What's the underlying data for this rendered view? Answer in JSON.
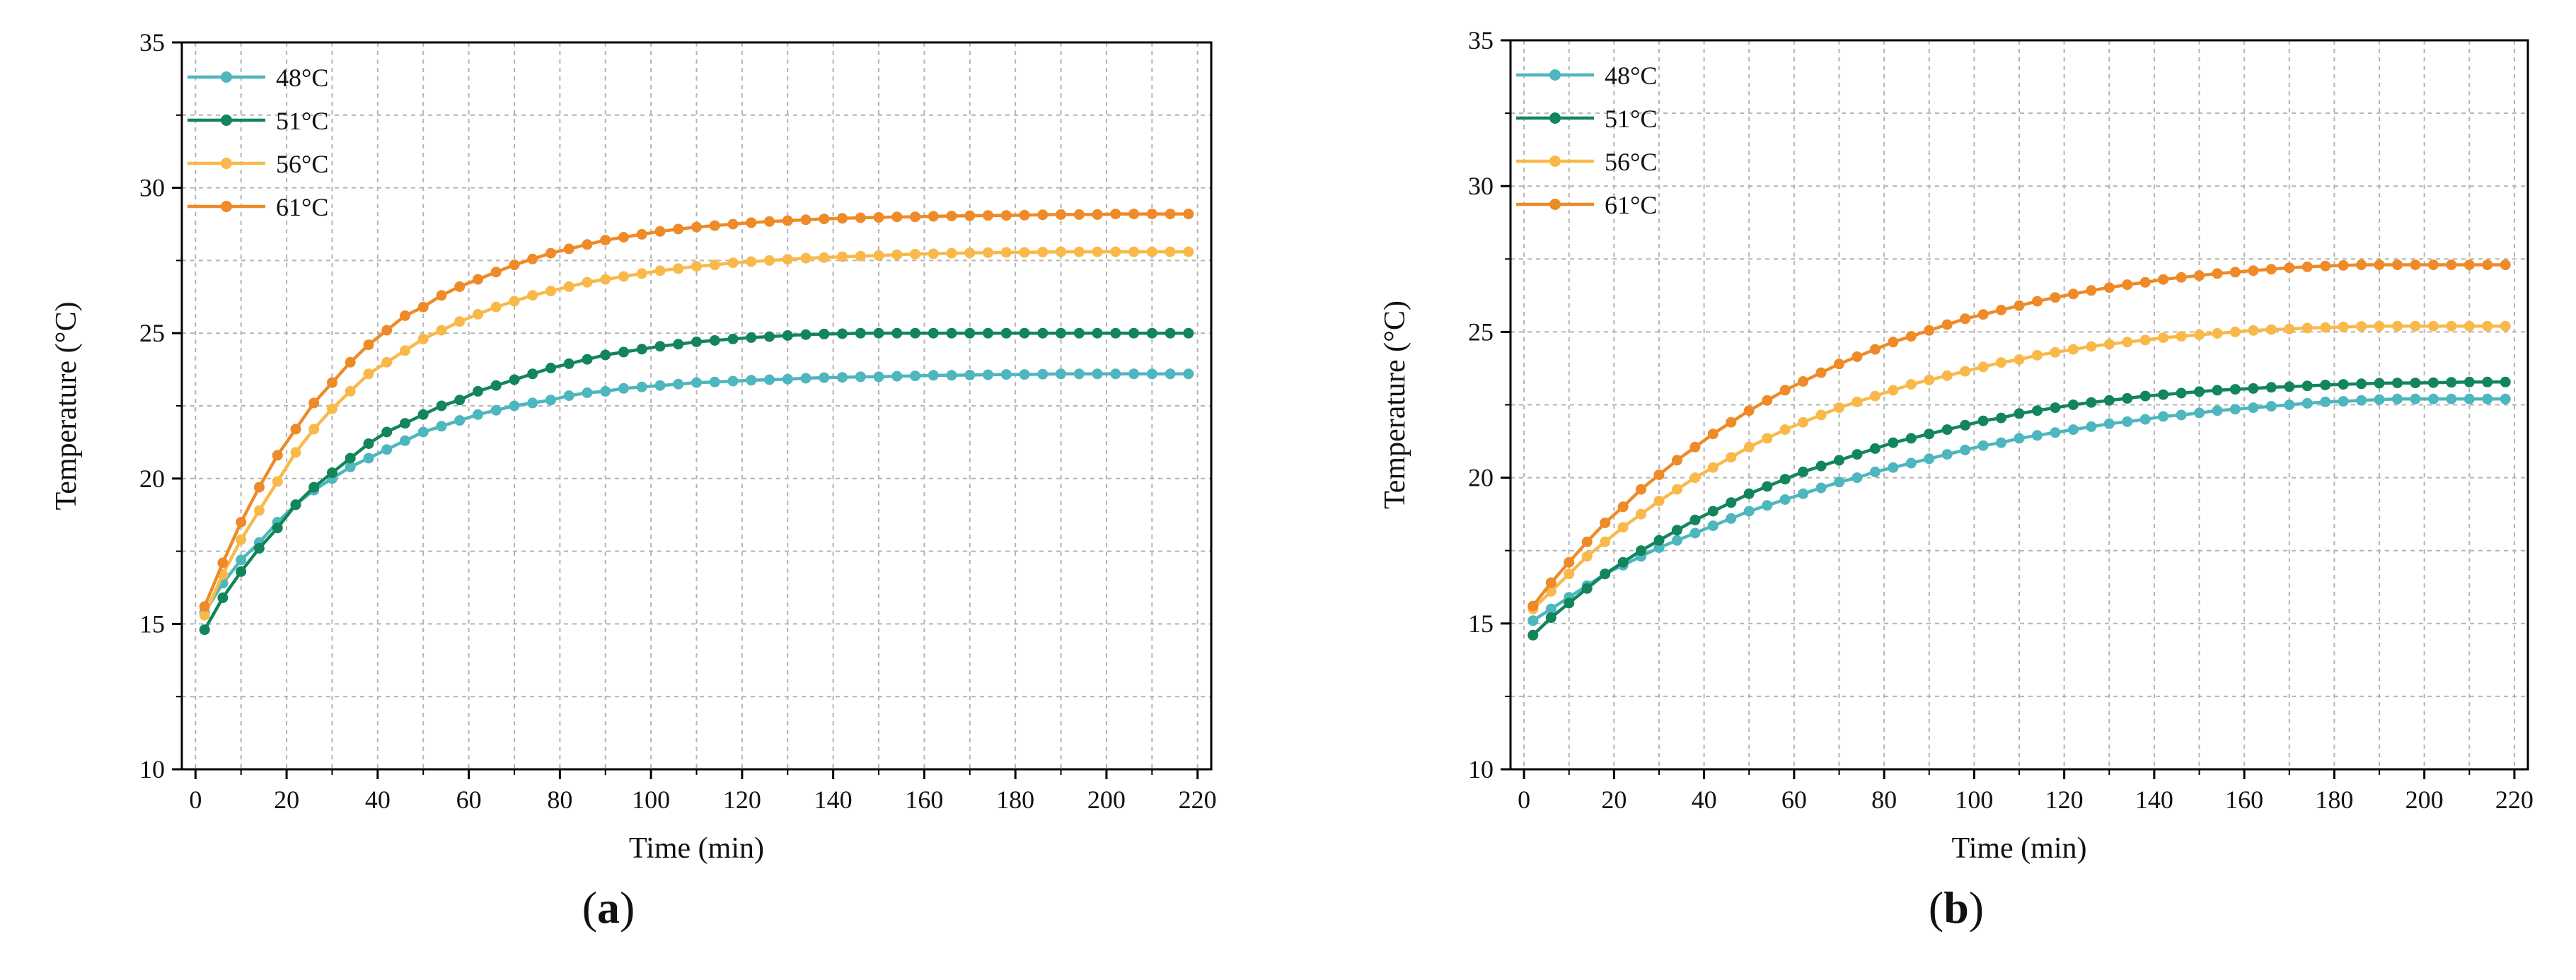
{
  "chart_data": [
    {
      "type": "line",
      "panel": "a",
      "panel_label": "a",
      "xlabel": "Time (min)",
      "ylabel": "Temperature (°C)",
      "xlim": [
        -3,
        223
      ],
      "ylim": [
        10,
        35
      ],
      "xticks": [
        0,
        20,
        40,
        60,
        80,
        100,
        120,
        140,
        160,
        180,
        200,
        220
      ],
      "yticks": [
        10,
        15,
        20,
        25,
        30,
        35
      ],
      "grid": true,
      "legend_position": "top-left",
      "x": [
        2,
        6,
        10,
        14,
        18,
        22,
        26,
        30,
        34,
        38,
        42,
        46,
        50,
        54,
        58,
        62,
        66,
        70,
        74,
        78,
        82,
        86,
        90,
        94,
        98,
        102,
        106,
        110,
        114,
        118,
        122,
        126,
        130,
        134,
        138,
        142,
        146,
        150,
        154,
        158,
        162,
        166,
        170,
        174,
        178,
        182,
        186,
        190,
        194,
        198,
        202,
        206,
        210,
        214,
        218
      ],
      "series": [
        {
          "name": "48°C",
          "color": "#4DB6BE",
          "values": [
            15.4,
            16.4,
            17.2,
            17.8,
            18.5,
            19.1,
            19.6,
            20.0,
            20.4,
            20.7,
            21.0,
            21.3,
            21.6,
            21.8,
            22.0,
            22.2,
            22.35,
            22.5,
            22.6,
            22.7,
            22.85,
            22.95,
            23.0,
            23.1,
            23.15,
            23.2,
            23.25,
            23.3,
            23.32,
            23.35,
            23.38,
            23.4,
            23.42,
            23.45,
            23.47,
            23.48,
            23.5,
            23.5,
            23.52,
            23.53,
            23.55,
            23.55,
            23.56,
            23.57,
            23.58,
            23.58,
            23.59,
            23.6,
            23.6,
            23.6,
            23.6,
            23.6,
            23.6,
            23.6,
            23.6
          ]
        },
        {
          "name": "51°C",
          "color": "#12855A",
          "values": [
            14.8,
            15.9,
            16.8,
            17.6,
            18.3,
            19.1,
            19.7,
            20.2,
            20.7,
            21.2,
            21.6,
            21.9,
            22.2,
            22.5,
            22.7,
            23.0,
            23.2,
            23.4,
            23.6,
            23.8,
            23.95,
            24.1,
            24.25,
            24.35,
            24.45,
            24.55,
            24.62,
            24.7,
            24.75,
            24.8,
            24.85,
            24.88,
            24.92,
            24.95,
            24.97,
            24.98,
            25.0,
            25.0,
            25.0,
            25.0,
            25.0,
            25.0,
            25.0,
            25.0,
            25.0,
            25.0,
            25.0,
            25.0,
            25.0,
            25.0,
            25.0,
            25.0,
            25.0,
            25.0,
            25.0
          ]
        },
        {
          "name": "56°C",
          "color": "#F9B94A",
          "values": [
            15.3,
            16.7,
            17.9,
            18.9,
            19.9,
            20.9,
            21.7,
            22.4,
            23.0,
            23.6,
            24.0,
            24.4,
            24.8,
            25.1,
            25.4,
            25.65,
            25.9,
            26.1,
            26.3,
            26.45,
            26.6,
            26.75,
            26.85,
            26.95,
            27.05,
            27.15,
            27.22,
            27.3,
            27.35,
            27.42,
            27.46,
            27.5,
            27.54,
            27.58,
            27.6,
            27.63,
            27.65,
            27.67,
            27.7,
            27.72,
            27.73,
            27.75,
            27.76,
            27.77,
            27.78,
            27.78,
            27.79,
            27.8,
            27.8,
            27.8,
            27.8,
            27.8,
            27.8,
            27.8,
            27.8
          ]
        },
        {
          "name": "61°C",
          "color": "#EE8A27",
          "values": [
            15.6,
            17.1,
            18.5,
            19.7,
            20.8,
            21.7,
            22.6,
            23.3,
            24.0,
            24.6,
            25.1,
            25.6,
            25.9,
            26.3,
            26.6,
            26.85,
            27.1,
            27.35,
            27.55,
            27.75,
            27.9,
            28.05,
            28.2,
            28.3,
            28.4,
            28.5,
            28.58,
            28.65,
            28.7,
            28.75,
            28.8,
            28.84,
            28.87,
            28.9,
            28.93,
            28.95,
            28.97,
            28.98,
            29.0,
            29.0,
            29.02,
            29.03,
            29.04,
            29.05,
            29.05,
            29.06,
            29.07,
            29.08,
            29.08,
            29.08,
            29.1,
            29.1,
            29.1,
            29.1,
            29.1
          ]
        }
      ]
    },
    {
      "type": "line",
      "panel": "b",
      "panel_label": "b",
      "xlabel": "Time (min)",
      "ylabel": "Temperature (°C)",
      "xlim": [
        -3,
        223
      ],
      "ylim": [
        10,
        35
      ],
      "xticks": [
        0,
        20,
        40,
        60,
        80,
        100,
        120,
        140,
        160,
        180,
        200,
        220
      ],
      "yticks": [
        10,
        15,
        20,
        25,
        30,
        35
      ],
      "grid": true,
      "legend_position": "top-left",
      "x": [
        2,
        6,
        10,
        14,
        18,
        22,
        26,
        30,
        34,
        38,
        42,
        46,
        50,
        54,
        58,
        62,
        66,
        70,
        74,
        78,
        82,
        86,
        90,
        94,
        98,
        102,
        106,
        110,
        114,
        118,
        122,
        126,
        130,
        134,
        138,
        142,
        146,
        150,
        154,
        158,
        162,
        166,
        170,
        174,
        178,
        182,
        186,
        190,
        194,
        198,
        202,
        206,
        210,
        214,
        218
      ],
      "series": [
        {
          "name": "48°C",
          "color": "#4DB6BE",
          "values": [
            15.1,
            15.5,
            15.9,
            16.3,
            16.7,
            17.0,
            17.3,
            17.6,
            17.85,
            18.1,
            18.35,
            18.6,
            18.85,
            19.05,
            19.25,
            19.45,
            19.65,
            19.85,
            20.0,
            20.2,
            20.35,
            20.5,
            20.65,
            20.8,
            20.95,
            21.1,
            21.2,
            21.35,
            21.45,
            21.55,
            21.65,
            21.75,
            21.85,
            21.92,
            22.0,
            22.1,
            22.15,
            22.22,
            22.3,
            22.35,
            22.4,
            22.45,
            22.5,
            22.55,
            22.6,
            22.62,
            22.65,
            22.68,
            22.7,
            22.7,
            22.7,
            22.7,
            22.7,
            22.7,
            22.7
          ]
        },
        {
          "name": "51°C",
          "color": "#12855A",
          "values": [
            14.6,
            15.2,
            15.7,
            16.2,
            16.7,
            17.1,
            17.5,
            17.85,
            18.2,
            18.55,
            18.85,
            19.15,
            19.45,
            19.7,
            19.95,
            20.2,
            20.4,
            20.6,
            20.8,
            21.0,
            21.2,
            21.35,
            21.5,
            21.65,
            21.8,
            21.95,
            22.05,
            22.2,
            22.3,
            22.4,
            22.5,
            22.58,
            22.65,
            22.72,
            22.8,
            22.85,
            22.9,
            22.95,
            23.0,
            23.03,
            23.06,
            23.1,
            23.12,
            23.15,
            23.18,
            23.2,
            23.22,
            23.24,
            23.25,
            23.25,
            23.26,
            23.27,
            23.28,
            23.28,
            23.28
          ]
        },
        {
          "name": "56°C",
          "color": "#F9B94A",
          "values": [
            15.5,
            16.1,
            16.7,
            17.3,
            17.8,
            18.3,
            18.75,
            19.2,
            19.6,
            20.0,
            20.35,
            20.7,
            21.05,
            21.35,
            21.65,
            21.9,
            22.15,
            22.4,
            22.6,
            22.8,
            23.0,
            23.2,
            23.35,
            23.5,
            23.65,
            23.8,
            23.95,
            24.05,
            24.2,
            24.3,
            24.4,
            24.5,
            24.58,
            24.65,
            24.72,
            24.8,
            24.85,
            24.9,
            24.95,
            25.0,
            25.05,
            25.08,
            25.1,
            25.13,
            25.15,
            25.17,
            25.19,
            25.2,
            25.2,
            25.2,
            25.2,
            25.2,
            25.2,
            25.2,
            25.2
          ]
        },
        {
          "name": "61°C",
          "color": "#EE8A27",
          "values": [
            15.6,
            16.4,
            17.1,
            17.8,
            18.45,
            19.0,
            19.6,
            20.1,
            20.6,
            21.05,
            21.5,
            21.9,
            22.3,
            22.65,
            23.0,
            23.3,
            23.6,
            23.9,
            24.15,
            24.4,
            24.65,
            24.85,
            25.05,
            25.25,
            25.45,
            25.6,
            25.75,
            25.9,
            26.05,
            26.18,
            26.3,
            26.42,
            26.52,
            26.62,
            26.7,
            26.8,
            26.87,
            26.93,
            27.0,
            27.05,
            27.1,
            27.15,
            27.2,
            27.23,
            27.26,
            27.28,
            27.3,
            27.3,
            27.3,
            27.3,
            27.3,
            27.3,
            27.3,
            27.3,
            27.3
          ]
        }
      ]
    }
  ]
}
